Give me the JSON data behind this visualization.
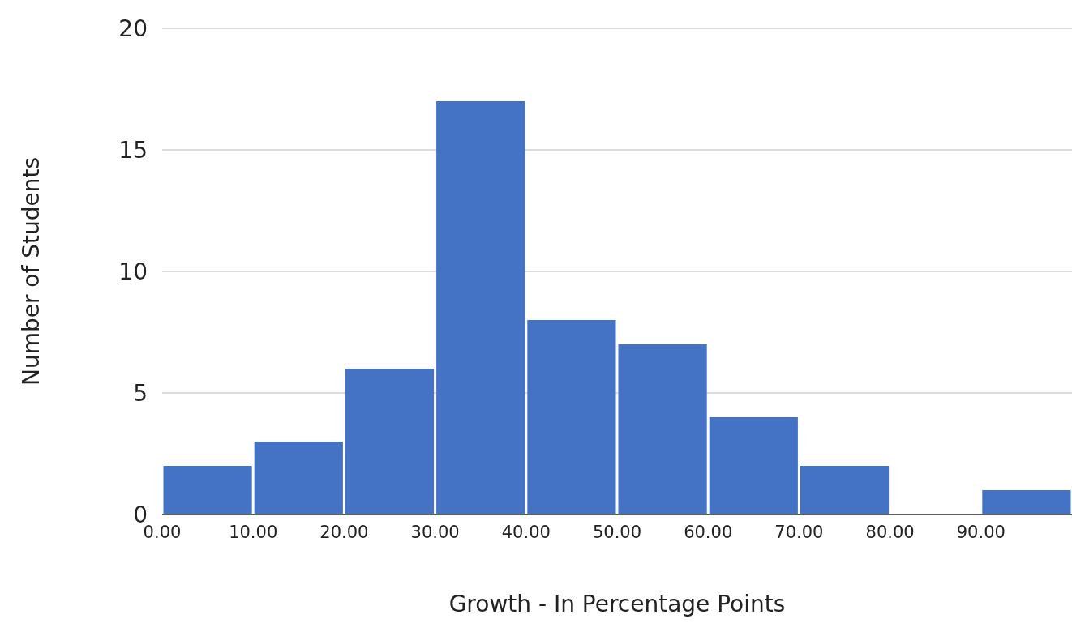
{
  "chart_data": {
    "type": "histogram",
    "xlabel": "Growth - In Percentage Points",
    "ylabel": "Number of Students",
    "bins": [
      0,
      10,
      20,
      30,
      40,
      50,
      60,
      70,
      80,
      90,
      100
    ],
    "values": [
      2,
      3,
      6,
      17,
      8,
      7,
      4,
      2,
      0,
      1
    ],
    "color": "#4472c4",
    "xlim": [
      0,
      100
    ],
    "xticks": [
      {
        "value": 0,
        "label": "0.00"
      },
      {
        "value": 10,
        "label": "10.00"
      },
      {
        "value": 20,
        "label": "20.00"
      },
      {
        "value": 30,
        "label": "30.00"
      },
      {
        "value": 40,
        "label": "40.00"
      },
      {
        "value": 50,
        "label": "50.00"
      },
      {
        "value": 60,
        "label": "60.00"
      },
      {
        "value": 70,
        "label": "70.00"
      },
      {
        "value": 80,
        "label": "80.00"
      },
      {
        "value": 90,
        "label": "90.00"
      }
    ],
    "ylim": [
      0,
      20
    ],
    "yticks": [
      0,
      5,
      10,
      15,
      20
    ],
    "grid": "y"
  }
}
